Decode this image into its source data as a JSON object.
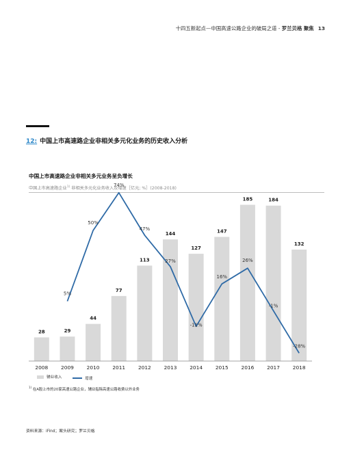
{
  "header": {
    "text": "十四五新起点—中国高速公路企业的破局之道 - ",
    "brand": "罗兰贝格 聚焦",
    "page_number": "13"
  },
  "section": {
    "number": "12:",
    "title": "中国上市高速路企业非相关多元化业务的历史收入分析"
  },
  "chart_data": {
    "type": "bar",
    "title": "中国上市高速路企业非相关多元业务呈负增长",
    "subtitle_main": "中国上市高速路企业",
    "subtitle_sup": "1)",
    "subtitle_rest": " 非相关多元化业务收入及增速［亿元; %］(2008-2018)",
    "categories": [
      "2008",
      "2009",
      "2010",
      "2011",
      "2012",
      "2013",
      "2014",
      "2015",
      "2016",
      "2017",
      "2018"
    ],
    "series": [
      {
        "name": "辅业收入",
        "type": "bar",
        "color": "#d9d9d9",
        "values": [
          28,
          29,
          44,
          77,
          113,
          144,
          127,
          147,
          185,
          184,
          132
        ],
        "labels": [
          "28",
          "29",
          "44",
          "77",
          "113",
          "144",
          "127",
          "147",
          "185",
          "184",
          "132"
        ]
      },
      {
        "name": "增速",
        "type": "line",
        "color": "#2e6aa6",
        "values": [
          null,
          5,
          50,
          74,
          47,
          27,
          -11,
          16,
          26,
          -1,
          -28
        ],
        "labels": [
          null,
          "5%",
          "50%",
          "74%",
          "47%",
          "27%",
          "-11%",
          "16%",
          "26%",
          "-1%",
          "-28%"
        ]
      }
    ],
    "ylim": [
      0,
      200
    ],
    "legend_position": "bottom-left",
    "grid": false
  },
  "footnote": {
    "marker": "1)",
    "text": " 在A股上市的20家高速公路企业，辅业指除高速公路收费以外业务"
  },
  "source": "资料来源：iFind；案头研究；罗兰贝格"
}
